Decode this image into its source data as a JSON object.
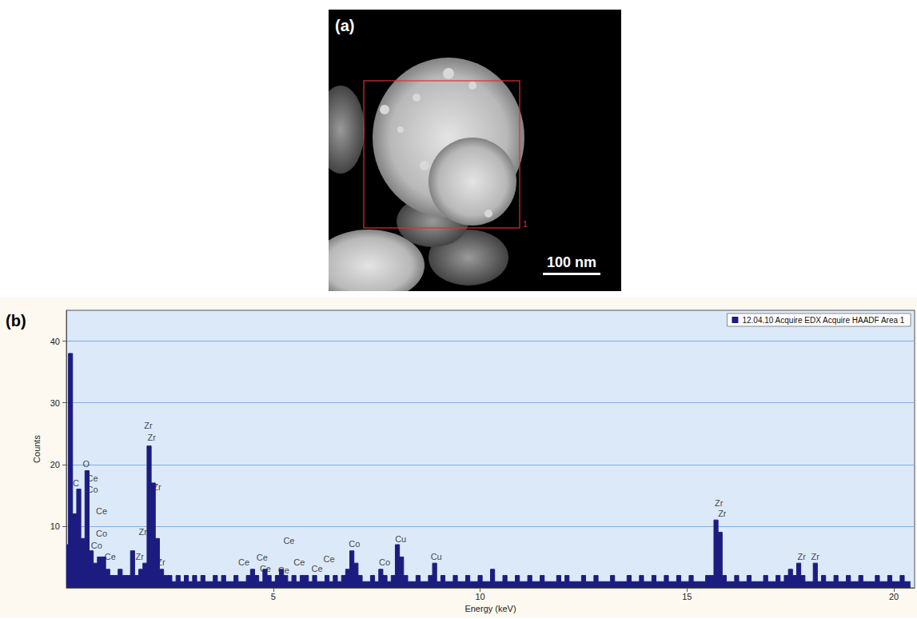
{
  "image": {
    "label": "(a)",
    "region_label": "1",
    "scale_bar": "100 nm"
  },
  "chart_data": {
    "type": "line",
    "title": "(b)",
    "x_label": "Energy (keV)",
    "y_label": "Counts",
    "xlim": [
      0,
      20.5
    ],
    "xticks": [
      5,
      10,
      15,
      20
    ],
    "ylim": [
      0,
      45
    ],
    "yticks": [
      10,
      20,
      30,
      40
    ],
    "grid": true,
    "legend": "upper right",
    "x": [
      0,
      0.1,
      0.2,
      0.3,
      0.4,
      0.5,
      0.6,
      0.7,
      0.8,
      0.9,
      1,
      1.1,
      1.2,
      1.3,
      1.4,
      1.5,
      1.6,
      1.7,
      1.8,
      1.9,
      2,
      2.1,
      2.2,
      2.3,
      2.4,
      2.5,
      2.6,
      2.7,
      2.8,
      2.9,
      3,
      3.1,
      3.2,
      3.3,
      3.4,
      3.5,
      3.6,
      3.7,
      3.8,
      3.9,
      4,
      4.1,
      4.2,
      4.3,
      4.4,
      4.5,
      4.6,
      4.7,
      4.8,
      4.9,
      5,
      5.1,
      5.2,
      5.3,
      5.4,
      5.5,
      5.6,
      5.7,
      5.8,
      5.9,
      6,
      6.1,
      6.2,
      6.3,
      6.4,
      6.5,
      6.6,
      6.7,
      6.8,
      6.9,
      7,
      7.1,
      7.2,
      7.3,
      7.4,
      7.5,
      7.6,
      7.7,
      7.8,
      7.9,
      8,
      8.1,
      8.2,
      8.3,
      8.4,
      8.5,
      8.6,
      8.7,
      8.8,
      8.9,
      9,
      9.1,
      9.2,
      9.3,
      9.4,
      9.5,
      9.6,
      9.7,
      9.8,
      9.9,
      10,
      10.1,
      10.2,
      10.3,
      10.4,
      10.5,
      10.6,
      10.7,
      10.8,
      10.9,
      11,
      11.1,
      11.2,
      11.3,
      11.4,
      11.5,
      11.6,
      11.7,
      11.8,
      11.9,
      12,
      12.1,
      12.2,
      12.3,
      12.4,
      12.5,
      12.6,
      12.7,
      12.8,
      12.9,
      13,
      13.1,
      13.2,
      13.3,
      13.4,
      13.5,
      13.6,
      13.7,
      13.8,
      13.9,
      14,
      14.1,
      14.2,
      14.3,
      14.4,
      14.5,
      14.6,
      14.7,
      14.8,
      14.9,
      15,
      15.1,
      15.2,
      15.3,
      15.4,
      15.5,
      15.6,
      15.7,
      15.8,
      15.9,
      16,
      16.1,
      16.2,
      16.3,
      16.4,
      16.5,
      16.6,
      16.7,
      16.8,
      16.9,
      17,
      17.1,
      17.2,
      17.3,
      17.4,
      17.5,
      17.6,
      17.7,
      17.8,
      17.9,
      18,
      18.1,
      18.2,
      18.3,
      18.4,
      18.5,
      18.6,
      18.7,
      18.8,
      18.9,
      19,
      19.1,
      19.2,
      19.3,
      19.4,
      19.5,
      19.6,
      19.7,
      19.8,
      19.9,
      20,
      20.1,
      20.2,
      20.3,
      20.4
    ],
    "series": [
      {
        "name": "12.04.10 Acquire EDX Acquire HAADF Area 1",
        "color": "#1c1c80",
        "values": [
          7,
          38,
          12,
          16,
          8,
          19,
          6,
          4,
          5,
          5,
          3,
          2,
          2,
          3,
          2,
          2,
          6,
          2,
          3,
          4,
          23,
          17,
          8,
          3,
          2,
          2,
          1,
          2,
          1,
          2,
          1,
          2,
          1,
          2,
          1,
          1,
          2,
          1,
          2,
          1,
          1,
          2,
          1,
          1,
          2,
          3,
          2,
          1,
          3,
          2,
          1,
          2,
          3,
          2,
          1,
          2,
          1,
          2,
          2,
          1,
          2,
          1,
          1,
          2,
          1,
          2,
          1,
          2,
          3,
          6,
          4,
          2,
          1,
          1,
          2,
          1,
          3,
          2,
          1,
          2,
          7,
          5,
          2,
          1,
          1,
          2,
          1,
          1,
          2,
          4,
          1,
          2,
          1,
          1,
          2,
          1,
          1,
          2,
          1,
          1,
          2,
          1,
          1,
          3,
          1,
          1,
          2,
          1,
          1,
          2,
          1,
          1,
          2,
          1,
          1,
          2,
          1,
          1,
          1,
          2,
          1,
          2,
          1,
          1,
          1,
          2,
          1,
          1,
          2,
          1,
          1,
          1,
          2,
          1,
          1,
          1,
          2,
          1,
          1,
          2,
          1,
          1,
          2,
          1,
          1,
          2,
          1,
          1,
          2,
          1,
          1,
          2,
          1,
          1,
          1,
          2,
          2,
          11,
          9,
          2,
          1,
          1,
          2,
          1,
          1,
          2,
          1,
          1,
          1,
          2,
          1,
          1,
          2,
          1,
          2,
          3,
          2,
          4,
          2,
          1,
          1,
          4,
          1,
          2,
          1,
          1,
          2,
          1,
          1,
          2,
          1,
          1,
          2,
          1,
          1,
          1,
          2,
          1,
          1,
          2,
          1,
          1,
          2,
          1,
          1
        ]
      }
    ],
    "annotations": [
      {
        "text": "Zr",
        "x": 1.98,
        "y": 26.3
      },
      {
        "text": "Zr",
        "x": 2.06,
        "y": 24.4
      },
      {
        "text": "Zr",
        "x": 2.19,
        "y": 16.3
      },
      {
        "text": "Zr",
        "x": 1.85,
        "y": 9.1
      },
      {
        "text": "Zr",
        "x": 1.77,
        "y": 5.0
      },
      {
        "text": "Zr",
        "x": 2.29,
        "y": 4.1
      },
      {
        "text": "O",
        "x": 0.48,
        "y": 20.1
      },
      {
        "text": "C",
        "x": 0.23,
        "y": 17.0
      },
      {
        "text": "Ce",
        "x": 0.63,
        "y": 17.8
      },
      {
        "text": "Co",
        "x": 0.63,
        "y": 15.9
      },
      {
        "text": "Ce",
        "x": 0.85,
        "y": 12.4
      },
      {
        "text": "Co",
        "x": 0.85,
        "y": 8.8
      },
      {
        "text": "Co",
        "x": 0.73,
        "y": 6.9
      },
      {
        "text": "Ce",
        "x": 1.06,
        "y": 5.0
      },
      {
        "text": "Ce",
        "x": 4.29,
        "y": 4.1
      },
      {
        "text": "Ce",
        "x": 4.73,
        "y": 4.9
      },
      {
        "text": "Ce",
        "x": 5.38,
        "y": 7.6
      },
      {
        "text": "Ce",
        "x": 4.81,
        "y": 3.1
      },
      {
        "text": "Ce",
        "x": 5.25,
        "y": 2.9
      },
      {
        "text": "Ce",
        "x": 5.63,
        "y": 4.1
      },
      {
        "text": "Ce",
        "x": 6.06,
        "y": 3.1
      },
      {
        "text": "Ce",
        "x": 6.35,
        "y": 4.7
      },
      {
        "text": "Co",
        "x": 6.96,
        "y": 7.1
      },
      {
        "text": "Co",
        "x": 7.69,
        "y": 4.1
      },
      {
        "text": "Cu",
        "x": 8.08,
        "y": 7.9
      },
      {
        "text": "Cu",
        "x": 8.94,
        "y": 5.1
      },
      {
        "text": "Zr",
        "x": 15.77,
        "y": 13.7
      },
      {
        "text": "Zr",
        "x": 15.85,
        "y": 12.1
      },
      {
        "text": "Zr",
        "x": 17.77,
        "y": 5.1
      },
      {
        "text": "Zr",
        "x": 18.1,
        "y": 5.1
      }
    ]
  }
}
